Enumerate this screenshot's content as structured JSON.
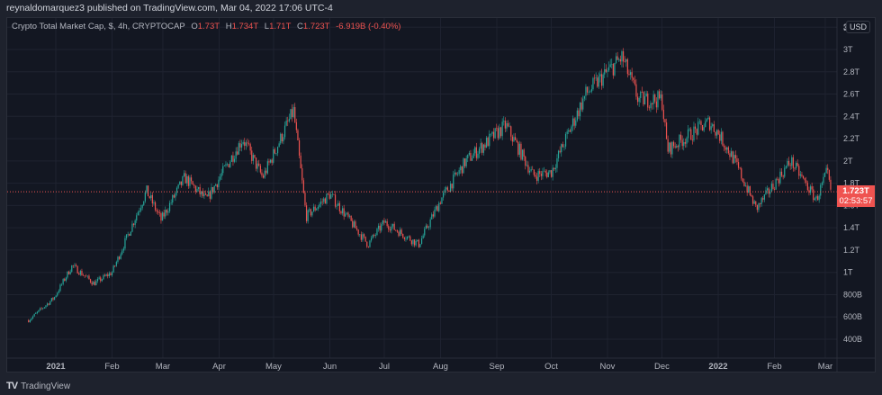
{
  "header": {
    "published": "reynaldomarquez3 published on TradingView.com, Mar 04, 2022 17:06 UTC-4"
  },
  "legend": {
    "symbol": "Crypto Total Market Cap, $, 4h, CRYPTOCAP",
    "open_label": "O",
    "open": "1.73T",
    "high_label": "H",
    "high": "1.734T",
    "low_label": "L",
    "low": "1.71T",
    "close_label": "C",
    "close": "1.723T",
    "change": "-6.919B (-0.40%)"
  },
  "price_scale": {
    "currency": "USD",
    "last_price": "1.723T",
    "countdown": "02:53:57"
  },
  "footer": {
    "brand": "TradingView"
  },
  "colors": {
    "up": "#26a69a",
    "down": "#ef5350",
    "background": "#131722",
    "grid": "#1f2330"
  },
  "chart_data": {
    "type": "candlestick",
    "title": "Crypto Total Market Cap, $, 4h, CRYPTOCAP",
    "y_unit": "USD",
    "ylim": [
      0.28,
      3.2
    ],
    "y_ticks": [
      "400B",
      "600B",
      "800B",
      "1T",
      "1.2T",
      "1.4T",
      "1.6T",
      "1.8T",
      "2T",
      "2.2T",
      "2.4T",
      "2.6T",
      "2.8T",
      "3T",
      "3."
    ],
    "y_tick_values": [
      0.4,
      0.6,
      0.8,
      1.0,
      1.2,
      1.4,
      1.6,
      1.8,
      2.0,
      2.2,
      2.4,
      2.6,
      2.8,
      3.0,
      3.2
    ],
    "x_ticks": [
      "2021",
      "Feb",
      "Mar",
      "Apr",
      "May",
      "Jun",
      "Jul",
      "Aug",
      "Sep",
      "Oct",
      "Nov",
      "Dec",
      "2022",
      "Feb",
      "Mar"
    ],
    "x_tick_dates": [
      "2021-01-01",
      "2021-02-01",
      "2021-03-01",
      "2021-04-01",
      "2021-05-01",
      "2021-06-01",
      "2021-07-01",
      "2021-08-01",
      "2021-09-01",
      "2021-10-01",
      "2021-11-01",
      "2021-12-01",
      "2022-01-01",
      "2022-02-01",
      "2022-03-01"
    ],
    "grid": true,
    "approx_close_path": {
      "dates": [
        "2020-12-17",
        "2020-12-31",
        "2021-01-10",
        "2021-01-22",
        "2021-02-01",
        "2021-02-20",
        "2021-02-28",
        "2021-03-13",
        "2021-03-25",
        "2021-04-14",
        "2021-04-25",
        "2021-05-12",
        "2021-05-19",
        "2021-06-01",
        "2021-06-22",
        "2021-07-01",
        "2021-07-20",
        "2021-08-01",
        "2021-08-15",
        "2021-09-06",
        "2021-09-21",
        "2021-10-01",
        "2021-10-20",
        "2021-11-09",
        "2021-11-18",
        "2021-12-01",
        "2021-12-04",
        "2021-12-27",
        "2022-01-01",
        "2022-01-10",
        "2022-01-22",
        "2022-02-10",
        "2022-02-24",
        "2022-03-02",
        "2022-03-04"
      ],
      "values_T": [
        0.57,
        0.77,
        1.06,
        0.9,
        1.0,
        1.73,
        1.47,
        1.85,
        1.65,
        2.2,
        1.85,
        2.45,
        1.5,
        1.7,
        1.25,
        1.45,
        1.25,
        1.65,
        2.0,
        2.32,
        1.87,
        1.9,
        2.6,
        2.93,
        2.55,
        2.55,
        2.1,
        2.35,
        2.25,
        2.0,
        1.57,
        2.0,
        1.65,
        1.9,
        1.723
      ]
    }
  }
}
